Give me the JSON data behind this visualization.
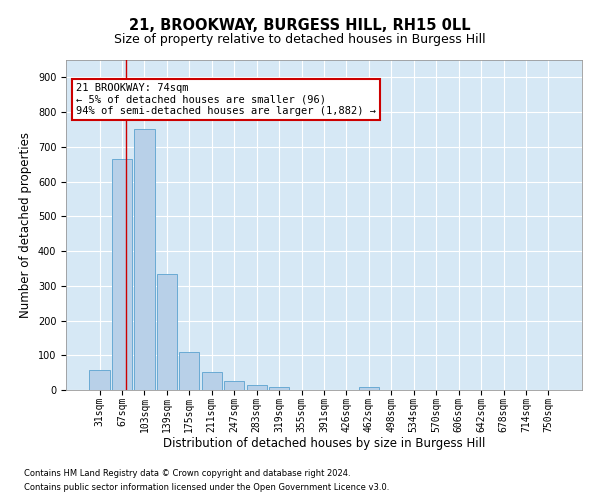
{
  "title": "21, BROOKWAY, BURGESS HILL, RH15 0LL",
  "subtitle": "Size of property relative to detached houses in Burgess Hill",
  "xlabel": "Distribution of detached houses by size in Burgess Hill",
  "ylabel": "Number of detached properties",
  "footnote1": "Contains HM Land Registry data © Crown copyright and database right 2024.",
  "footnote2": "Contains public sector information licensed under the Open Government Licence v3.0.",
  "bin_labels": [
    "31sqm",
    "67sqm",
    "103sqm",
    "139sqm",
    "175sqm",
    "211sqm",
    "247sqm",
    "283sqm",
    "319sqm",
    "355sqm",
    "391sqm",
    "426sqm",
    "462sqm",
    "498sqm",
    "534sqm",
    "570sqm",
    "606sqm",
    "642sqm",
    "678sqm",
    "714sqm",
    "750sqm"
  ],
  "bar_values": [
    58,
    665,
    750,
    335,
    108,
    52,
    25,
    15,
    10,
    0,
    0,
    0,
    10,
    0,
    0,
    0,
    0,
    0,
    0,
    0,
    0
  ],
  "bar_color": "#b8d0e8",
  "bar_edge_color": "#6aaad4",
  "red_line_x": 1.18,
  "annotation_text": "21 BROOKWAY: 74sqm\n← 5% of detached houses are smaller (96)\n94% of semi-detached houses are larger (1,882) →",
  "annotation_box_color": "#ffffff",
  "annotation_box_edge": "#cc0000",
  "ylim": [
    0,
    950
  ],
  "yticks": [
    0,
    100,
    200,
    300,
    400,
    500,
    600,
    700,
    800,
    900
  ],
  "background_color": "#ffffff",
  "plot_bg_color": "#d6e8f5",
  "grid_color": "#ffffff",
  "title_fontsize": 10.5,
  "subtitle_fontsize": 9,
  "axis_label_fontsize": 8.5,
  "tick_fontsize": 7,
  "annotation_fontsize": 7.5,
  "footnote_fontsize": 6
}
